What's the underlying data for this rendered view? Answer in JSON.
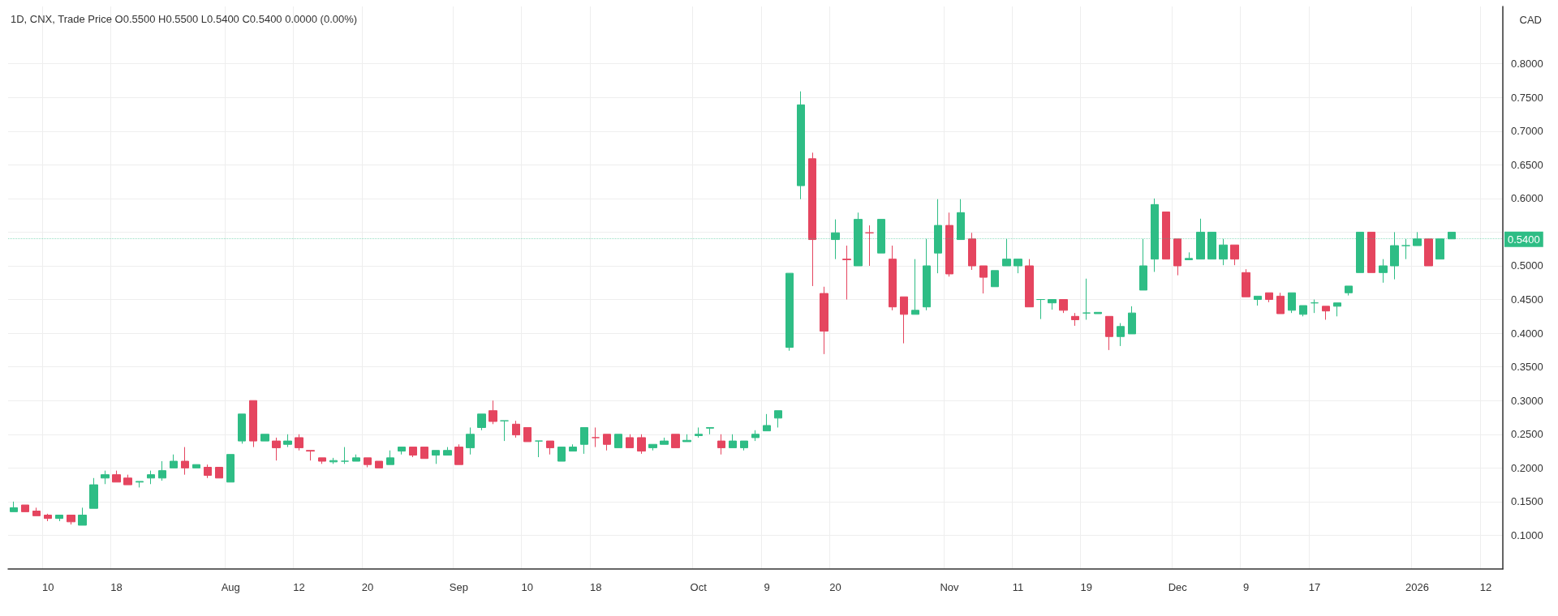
{
  "chart_data": {
    "type": "candlestick",
    "title": "1D, CNX, Trade Price O0.5500 H0.5500 L0.5400 C0.5400 0.0000 (0.00%)",
    "categories": [
      null,
      null,
      null,
      "10",
      null,
      null,
      null,
      null,
      null,
      "18",
      null,
      null,
      null,
      null,
      null,
      null,
      null,
      null,
      null,
      "Aug",
      null,
      null,
      null,
      null,
      null,
      "12",
      null,
      null,
      null,
      null,
      null,
      "20",
      null,
      null,
      null,
      null,
      null,
      null,
      null,
      "Sep",
      null,
      null,
      null,
      null,
      null,
      "10",
      null,
      null,
      null,
      null,
      null,
      "18",
      null,
      null,
      null,
      null,
      null,
      null,
      null,
      null,
      "Oct",
      null,
      null,
      null,
      null,
      null,
      "9",
      null,
      null,
      null,
      null,
      null,
      "20",
      null,
      null,
      null,
      null,
      null,
      null,
      null,
      null,
      null,
      "Nov",
      null,
      null,
      null,
      null,
      null,
      "11",
      null,
      null,
      null,
      null,
      null,
      "19",
      null,
      null,
      null,
      null,
      null,
      null,
      null,
      "Dec",
      null,
      null,
      null,
      null,
      null,
      "9",
      null,
      null,
      null,
      null,
      null,
      "17",
      null,
      null,
      null,
      null,
      null,
      null,
      null,
      null,
      "2026",
      null,
      null,
      null,
      null,
      null,
      "12",
      null
    ],
    "ohlc": [
      [
        0.135,
        0.15,
        0.135,
        0.141
      ],
      [
        0.145,
        0.145,
        0.135,
        0.135
      ],
      [
        0.136,
        0.141,
        0.129,
        0.129
      ],
      [
        0.13,
        0.132,
        0.121,
        0.125
      ],
      [
        0.125,
        0.13,
        0.121,
        0.13
      ],
      [
        0.13,
        0.13,
        0.116,
        0.12
      ],
      [
        0.115,
        0.141,
        0.115,
        0.13
      ],
      [
        0.14,
        0.185,
        0.14,
        0.175
      ],
      [
        0.185,
        0.196,
        0.176,
        0.19
      ],
      [
        0.19,
        0.196,
        0.179,
        0.179
      ],
      [
        0.185,
        0.19,
        0.175,
        0.175
      ],
      [
        0.179,
        0.18,
        0.171,
        0.18
      ],
      [
        0.185,
        0.196,
        0.176,
        0.19
      ],
      [
        0.185,
        0.21,
        0.181,
        0.196
      ],
      [
        0.2,
        0.22,
        0.2,
        0.21
      ],
      [
        0.21,
        0.231,
        0.19,
        0.2
      ],
      [
        0.2,
        0.205,
        0.2,
        0.205
      ],
      [
        0.201,
        0.205,
        0.185,
        0.189
      ],
      [
        0.201,
        0.201,
        0.185,
        0.185
      ],
      [
        0.179,
        0.22,
        0.179,
        0.22
      ],
      [
        0.24,
        0.28,
        0.236,
        0.28
      ],
      [
        0.3,
        0.3,
        0.231,
        0.24
      ],
      [
        0.24,
        0.25,
        0.24,
        0.25
      ],
      [
        0.24,
        0.245,
        0.211,
        0.23
      ],
      [
        0.235,
        0.25,
        0.231,
        0.24
      ],
      [
        0.245,
        0.25,
        0.226,
        0.23
      ],
      [
        0.226,
        0.226,
        0.211,
        0.225
      ],
      [
        0.215,
        0.215,
        0.206,
        0.21
      ],
      [
        0.209,
        0.215,
        0.206,
        0.211
      ],
      [
        0.21,
        0.231,
        0.206,
        0.21
      ],
      [
        0.21,
        0.22,
        0.21,
        0.215
      ],
      [
        0.215,
        0.215,
        0.201,
        0.205
      ],
      [
        0.21,
        0.21,
        0.2,
        0.2
      ],
      [
        0.205,
        0.226,
        0.205,
        0.215
      ],
      [
        0.225,
        0.231,
        0.22,
        0.231
      ],
      [
        0.231,
        0.231,
        0.216,
        0.219
      ],
      [
        0.231,
        0.231,
        0.214,
        0.214
      ],
      [
        0.219,
        0.226,
        0.206,
        0.226
      ],
      [
        0.219,
        0.231,
        0.219,
        0.226
      ],
      [
        0.231,
        0.235,
        0.205,
        0.205
      ],
      [
        0.23,
        0.26,
        0.22,
        0.25
      ],
      [
        0.26,
        0.28,
        0.256,
        0.28
      ],
      [
        0.285,
        0.3,
        0.265,
        0.269
      ],
      [
        0.27,
        0.27,
        0.24,
        0.27
      ],
      [
        0.265,
        0.27,
        0.245,
        0.249
      ],
      [
        0.26,
        0.26,
        0.239,
        0.239
      ],
      [
        0.24,
        0.24,
        0.216,
        0.24
      ],
      [
        0.24,
        0.24,
        0.22,
        0.23
      ],
      [
        0.21,
        0.231,
        0.21,
        0.231
      ],
      [
        0.225,
        0.235,
        0.225,
        0.231
      ],
      [
        0.235,
        0.26,
        0.221,
        0.26
      ],
      [
        0.245,
        0.26,
        0.231,
        0.245
      ],
      [
        0.25,
        0.25,
        0.226,
        0.235
      ],
      [
        0.23,
        0.25,
        0.23,
        0.25
      ],
      [
        0.245,
        0.25,
        0.23,
        0.23
      ],
      [
        0.245,
        0.25,
        0.221,
        0.225
      ],
      [
        0.23,
        0.235,
        0.226,
        0.235
      ],
      [
        0.235,
        0.245,
        0.235,
        0.24
      ],
      [
        0.25,
        0.25,
        0.23,
        0.23
      ],
      [
        0.239,
        0.25,
        0.239,
        0.241
      ],
      [
        0.248,
        0.26,
        0.245,
        0.25
      ],
      [
        0.259,
        0.26,
        0.25,
        0.26
      ],
      [
        0.24,
        0.25,
        0.22,
        0.23
      ],
      [
        0.23,
        0.25,
        0.23,
        0.24
      ],
      [
        0.23,
        0.24,
        0.226,
        0.24
      ],
      [
        0.245,
        0.256,
        0.24,
        0.25
      ],
      [
        0.255,
        0.28,
        0.255,
        0.263
      ],
      [
        0.274,
        0.285,
        0.26,
        0.285
      ],
      [
        0.379,
        0.489,
        0.374,
        0.489
      ],
      [
        0.619,
        0.759,
        0.599,
        0.739
      ],
      [
        0.659,
        0.668,
        0.47,
        0.539
      ],
      [
        0.459,
        0.469,
        0.369,
        0.403
      ],
      [
        0.539,
        0.569,
        0.51,
        0.549
      ],
      [
        0.51,
        0.53,
        0.45,
        0.509
      ],
      [
        0.5,
        0.579,
        0.5,
        0.569
      ],
      [
        0.549,
        0.56,
        0.5,
        0.549
      ],
      [
        0.519,
        0.569,
        0.519,
        0.569
      ],
      [
        0.51,
        0.53,
        0.434,
        0.439
      ],
      [
        0.454,
        0.454,
        0.385,
        0.428
      ],
      [
        0.428,
        0.51,
        0.428,
        0.434
      ],
      [
        0.439,
        0.54,
        0.434,
        0.5
      ],
      [
        0.519,
        0.599,
        0.489,
        0.56
      ],
      [
        0.56,
        0.579,
        0.484,
        0.488
      ],
      [
        0.539,
        0.599,
        0.539,
        0.579
      ],
      [
        0.54,
        0.549,
        0.494,
        0.5
      ],
      [
        0.5,
        0.5,
        0.459,
        0.483
      ],
      [
        0.469,
        0.493,
        0.469,
        0.493
      ],
      [
        0.5,
        0.54,
        0.5,
        0.51
      ],
      [
        0.5,
        0.51,
        0.489,
        0.51
      ],
      [
        0.5,
        0.51,
        0.439,
        0.439
      ],
      [
        0.45,
        0.45,
        0.421,
        0.45
      ],
      [
        0.445,
        0.45,
        0.435,
        0.45
      ],
      [
        0.45,
        0.45,
        0.43,
        0.434
      ],
      [
        0.425,
        0.43,
        0.411,
        0.42
      ],
      [
        0.43,
        0.481,
        0.42,
        0.43
      ],
      [
        0.429,
        0.431,
        0.429,
        0.431
      ],
      [
        0.425,
        0.425,
        0.375,
        0.395
      ],
      [
        0.395,
        0.415,
        0.381,
        0.41
      ],
      [
        0.399,
        0.44,
        0.399,
        0.43
      ],
      [
        0.464,
        0.54,
        0.464,
        0.5
      ],
      [
        0.51,
        0.6,
        0.491,
        0.591
      ],
      [
        0.58,
        0.58,
        0.51,
        0.51
      ],
      [
        0.54,
        0.54,
        0.486,
        0.5
      ],
      [
        0.509,
        0.52,
        0.509,
        0.511
      ],
      [
        0.51,
        0.57,
        0.51,
        0.55
      ],
      [
        0.51,
        0.55,
        0.51,
        0.55
      ],
      [
        0.51,
        0.54,
        0.501,
        0.531
      ],
      [
        0.531,
        0.531,
        0.501,
        0.51
      ],
      [
        0.49,
        0.495,
        0.454,
        0.454
      ],
      [
        0.45,
        0.455,
        0.441,
        0.455
      ],
      [
        0.46,
        0.46,
        0.446,
        0.45
      ],
      [
        0.455,
        0.46,
        0.429,
        0.429
      ],
      [
        0.434,
        0.46,
        0.43,
        0.46
      ],
      [
        0.428,
        0.441,
        0.425,
        0.441
      ],
      [
        0.445,
        0.45,
        0.43,
        0.445
      ],
      [
        0.44,
        0.44,
        0.42,
        0.433
      ],
      [
        0.44,
        0.445,
        0.425,
        0.445
      ],
      [
        0.46,
        0.47,
        0.456,
        0.47
      ],
      [
        0.49,
        0.55,
        0.49,
        0.55
      ],
      [
        0.55,
        0.55,
        0.49,
        0.49
      ],
      [
        0.49,
        0.51,
        0.475,
        0.5
      ],
      [
        0.5,
        0.55,
        0.48,
        0.53
      ],
      [
        0.53,
        0.54,
        0.51,
        0.53
      ],
      [
        0.53,
        0.55,
        0.53,
        0.54
      ],
      [
        0.54,
        0.54,
        0.5,
        0.5
      ],
      [
        0.51,
        0.54,
        0.51,
        0.54
      ],
      [
        0.54,
        0.55,
        0.54,
        0.55
      ],
      null,
      null,
      null,
      null
    ],
    "colors": [
      "#2ebd85",
      "#e5455f",
      "#e5455f",
      "#e5455f",
      "#2ebd85",
      "#e5455f",
      "#2ebd85",
      "#2ebd85",
      "#2ebd85",
      "#e5455f",
      "#e5455f",
      "#2ebd85",
      "#2ebd85",
      "#2ebd85",
      "#2ebd85",
      "#e5455f",
      "#2ebd85",
      "#e5455f",
      "#e5455f",
      "#2ebd85",
      "#2ebd85",
      "#e5455f",
      "#2ebd85",
      "#e5455f",
      "#2ebd85",
      "#e5455f",
      "#e5455f",
      "#e5455f",
      "#2ebd85",
      "#2ebd85",
      "#2ebd85",
      "#e5455f",
      "#e5455f",
      "#2ebd85",
      "#2ebd85",
      "#e5455f",
      "#e5455f",
      "#2ebd85",
      "#2ebd85",
      "#e5455f",
      "#2ebd85",
      "#2ebd85",
      "#e5455f",
      "#2ebd85",
      "#e5455f",
      "#e5455f",
      "#2ebd85",
      "#e5455f",
      "#2ebd85",
      "#2ebd85",
      "#2ebd85",
      "#e5455f",
      "#e5455f",
      "#2ebd85",
      "#e5455f",
      "#e5455f",
      "#2ebd85",
      "#2ebd85",
      "#e5455f",
      "#2ebd85",
      "#2ebd85",
      "#2ebd85",
      "#e5455f",
      "#2ebd85",
      "#2ebd85",
      "#2ebd85",
      "#2ebd85",
      "#2ebd85",
      "#2ebd85",
      "#2ebd85",
      "#e5455f",
      "#e5455f",
      "#2ebd85",
      "#e5455f",
      "#2ebd85",
      "#e5455f",
      "#2ebd85",
      "#e5455f",
      "#e5455f",
      "#2ebd85",
      "#2ebd85",
      "#2ebd85",
      "#e5455f",
      "#2ebd85",
      "#e5455f",
      "#e5455f",
      "#2ebd85",
      "#2ebd85",
      "#2ebd85",
      "#e5455f",
      "#2ebd85",
      "#2ebd85",
      "#e5455f",
      "#e5455f",
      "#2ebd85",
      "#2ebd85",
      "#e5455f",
      "#2ebd85",
      "#2ebd85",
      "#2ebd85",
      "#2ebd85",
      "#e5455f",
      "#e5455f",
      "#2ebd85",
      "#2ebd85",
      "#2ebd85",
      "#2ebd85",
      "#e5455f",
      "#e5455f",
      "#2ebd85",
      "#e5455f",
      "#e5455f",
      "#2ebd85",
      "#2ebd85",
      "#2ebd85",
      "#e5455f",
      "#2ebd85",
      "#2ebd85",
      "#2ebd85",
      "#e5455f",
      "#2ebd85",
      "#2ebd85",
      "#2ebd85",
      "#2ebd85",
      "#e5455f",
      "#2ebd85",
      "#2ebd85",
      null,
      null,
      null,
      null
    ],
    "ylim": [
      0.05,
      0.885
    ],
    "yticks": [
      {
        "value": 0.1,
        "label": "0.1000"
      },
      {
        "value": 0.15,
        "label": "0.1500"
      },
      {
        "value": 0.2,
        "label": "0.2000"
      },
      {
        "value": 0.25,
        "label": "0.2500"
      },
      {
        "value": 0.3,
        "label": "0.3000"
      },
      {
        "value": 0.35,
        "label": "0.3500"
      },
      {
        "value": 0.4,
        "label": "0.4000"
      },
      {
        "value": 0.45,
        "label": "0.4500"
      },
      {
        "value": 0.5,
        "label": "0.5000"
      },
      {
        "value": 0.55,
        "label": null
      },
      {
        "value": 0.6,
        "label": "0.6000"
      },
      {
        "value": 0.65,
        "label": "0.6500"
      },
      {
        "value": 0.7,
        "label": "0.7000"
      },
      {
        "value": 0.75,
        "label": "0.7500"
      },
      {
        "value": 0.8,
        "label": "0.8000"
      }
    ],
    "grid": true,
    "ref_lines": [
      {
        "axis": "y",
        "value": 0.54,
        "label": "0.5400",
        "color": "#2ebd85",
        "line_style": "dotted"
      }
    ],
    "annotations": [
      "CAD"
    ]
  }
}
